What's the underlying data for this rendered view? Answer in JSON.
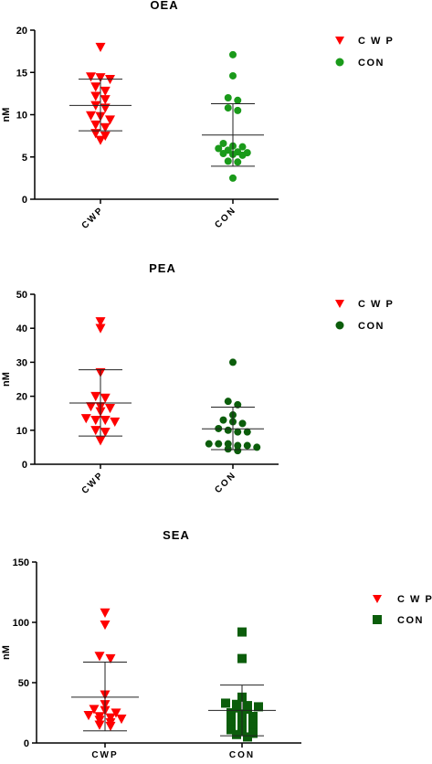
{
  "chart_data": [
    {
      "type": "scatter",
      "title": "OEA",
      "ylabel": "nM",
      "ylim": [
        0,
        20
      ],
      "yticks": [
        0,
        5,
        10,
        15,
        20
      ],
      "categories": [
        "CWP",
        "CON"
      ],
      "legend_position": "right",
      "series": [
        {
          "name": "CWP",
          "marker": "triangle-down",
          "color": "#ff0000",
          "values": [
            18.0,
            14.5,
            14.4,
            14.2,
            13.3,
            12.8,
            12.2,
            11.8,
            11.1,
            10.8,
            9.9,
            9.8,
            9.4,
            8.8,
            8.5,
            7.8,
            7.5,
            7.0
          ],
          "mean": 11.1,
          "sd_low": 8.1,
          "sd_high": 14.2
        },
        {
          "name": "CON",
          "marker": "circle",
          "color": "#1a9a1a",
          "values": [
            17.1,
            14.6,
            12.0,
            11.7,
            10.8,
            10.5,
            6.6,
            6.3,
            6.2,
            6.0,
            5.8,
            5.6,
            5.5,
            5.4,
            5.3,
            5.2,
            4.5,
            4.4,
            2.5
          ],
          "mean": 7.6,
          "sd_low": 3.9,
          "sd_high": 11.3
        }
      ]
    },
    {
      "type": "scatter",
      "title": "PEA",
      "ylabel": "nM",
      "ylim": [
        0,
        50
      ],
      "yticks": [
        0,
        10,
        20,
        30,
        40,
        50
      ],
      "categories": [
        "CWP",
        "CON"
      ],
      "legend_position": "right",
      "series": [
        {
          "name": "CWP",
          "marker": "triangle-down",
          "color": "#ff0000",
          "values": [
            42.0,
            40.0,
            27.0,
            20.0,
            19.5,
            17.0,
            17.0,
            16.5,
            15.5,
            13.5,
            13.0,
            13.0,
            12.5,
            10.0,
            9.5,
            7.0
          ],
          "mean": 18.0,
          "sd_low": 8.3,
          "sd_high": 27.8
        },
        {
          "name": "CON",
          "marker": "circle",
          "color": "#0b5d0b",
          "values": [
            30.0,
            18.5,
            17.5,
            14.5,
            13.0,
            12.5,
            12.0,
            10.5,
            10.0,
            9.5,
            9.5,
            6.0,
            6.0,
            6.0,
            5.5,
            5.5,
            5.0,
            4.5,
            4.0
          ],
          "mean": 10.4,
          "sd_low": 4.3,
          "sd_high": 16.8
        }
      ]
    },
    {
      "type": "scatter",
      "title": "SEA",
      "ylabel": "nM",
      "ylim": [
        0,
        150
      ],
      "yticks": [
        0,
        50,
        100,
        150
      ],
      "categories": [
        "CWP",
        "CON"
      ],
      "legend_position": "right",
      "series": [
        {
          "name": "CWP",
          "marker": "triangle-down",
          "color": "#ff0000",
          "values": [
            108,
            98,
            72,
            70,
            40,
            32,
            28,
            27,
            25,
            23,
            22,
            21,
            20,
            19,
            17,
            15,
            14
          ],
          "mean": 38,
          "sd_low": 10,
          "sd_high": 67
        },
        {
          "name": "CON",
          "marker": "square",
          "color": "#0b5d0b",
          "values": [
            92,
            70,
            38,
            33,
            32,
            31,
            30,
            29,
            28,
            25,
            24,
            22,
            21,
            19,
            18,
            16,
            14,
            13,
            11,
            10,
            8,
            7,
            5
          ],
          "mean": 27,
          "sd_low": 6,
          "sd_high": 48
        }
      ]
    }
  ]
}
